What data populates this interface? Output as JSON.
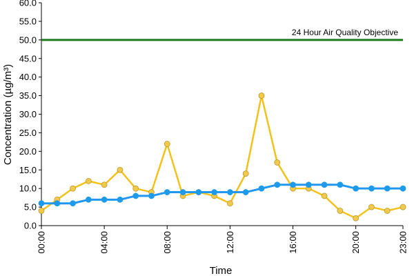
{
  "chart_data": {
    "type": "line",
    "xlabel": "Time",
    "ylabel": "Concentration (µg/m³)",
    "ylim": [
      0,
      60
    ],
    "yticks": [
      "0.0",
      "5.0",
      "10.0",
      "15.0",
      "20.0",
      "25.0",
      "30.0",
      "35.0",
      "40.0",
      "45.0",
      "50.0",
      "55.0",
      "60.0"
    ],
    "xlim": [
      0,
      23
    ],
    "xticks": [
      {
        "x": 0,
        "label": "00:00"
      },
      {
        "x": 4,
        "label": "04:00"
      },
      {
        "x": 8,
        "label": "08:00"
      },
      {
        "x": 12,
        "label": "12:00"
      },
      {
        "x": 16,
        "label": "16:00"
      },
      {
        "x": 20,
        "label": "20:00"
      },
      {
        "x": 23,
        "label": "23:00"
      }
    ],
    "grid": false,
    "x": [
      0,
      1,
      2,
      3,
      4,
      5,
      6,
      7,
      8,
      9,
      10,
      11,
      12,
      13,
      14,
      15,
      16,
      17,
      18,
      19,
      20,
      21,
      22,
      23
    ],
    "series": [
      {
        "color": "#f2c21b",
        "marker_fill": "#f2c94c",
        "marker_stroke": "#b89b2c",
        "values": [
          4,
          7,
          10,
          12,
          11,
          15,
          10,
          9,
          22,
          8,
          9,
          8,
          6,
          14,
          35,
          17,
          10,
          10,
          8,
          4,
          2,
          5,
          4,
          5
        ]
      },
      {
        "color": "#2196f3",
        "marker_fill": "#1e9be8",
        "marker_stroke": "#1e9be8",
        "values": [
          6,
          6,
          6,
          7,
          7,
          7,
          8,
          8,
          9,
          9,
          9,
          9,
          9,
          9,
          10,
          11,
          11,
          11,
          11,
          11,
          10,
          10,
          10,
          10
        ]
      }
    ],
    "reference_line": {
      "y": 50,
      "color": "#1e7a1e",
      "label": "24 Hour Air Quality Objective"
    }
  }
}
